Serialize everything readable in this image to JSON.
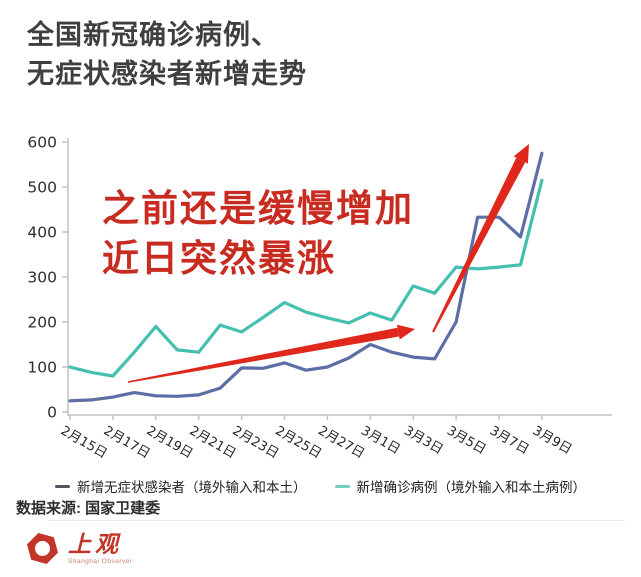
{
  "title": {
    "line1": "全国新冠确诊病例、",
    "line2": "无症状感染者新增走势"
  },
  "annotation": {
    "line1": "之前还是缓慢增加",
    "line2": "近日突然暴涨",
    "color": "#c82b20",
    "arrow_color": "#e0271c"
  },
  "chart_data": {
    "type": "line",
    "x_tick_labels": [
      "2月15日",
      "2月17日",
      "2月19日",
      "2月21日",
      "2月23日",
      "2月25日",
      "2月27日",
      "3月1日",
      "3月3日",
      "3月5日",
      "3月7日",
      "3月9日"
    ],
    "points_per_series": 23,
    "y_ticks": [
      0,
      100,
      200,
      300,
      400,
      500,
      600
    ],
    "ylim": [
      0,
      600
    ],
    "grid": false,
    "legend_position": "bottom",
    "axis_color": "#c2c2c2",
    "series": [
      {
        "name": "新增无症状感染者（境外输入和本土）",
        "color": "#5c6ea6",
        "legend_color": "#4d5560",
        "values": [
          25,
          27,
          33,
          43,
          36,
          35,
          38,
          53,
          98,
          97,
          109,
          93,
          100,
          120,
          150,
          133,
          122,
          118,
          200,
          433,
          433,
          389,
          575
        ]
      },
      {
        "name": "新增确诊病例（境外输入和本土病例）",
        "color": "#45bfae",
        "legend_color": "#72cfc2",
        "values": [
          100,
          88,
          80,
          133,
          190,
          138,
          133,
          193,
          178,
          210,
          243,
          222,
          209,
          198,
          220,
          204,
          280,
          264,
          322,
          318,
          322,
          327,
          515
        ]
      }
    ]
  },
  "source": {
    "label": "数据来源: 国家卫建委"
  },
  "logo": {
    "name": "上观",
    "subtitle": "Shanghai Observer",
    "color": "#c23528",
    "subtitle_color": "#cd8075"
  }
}
